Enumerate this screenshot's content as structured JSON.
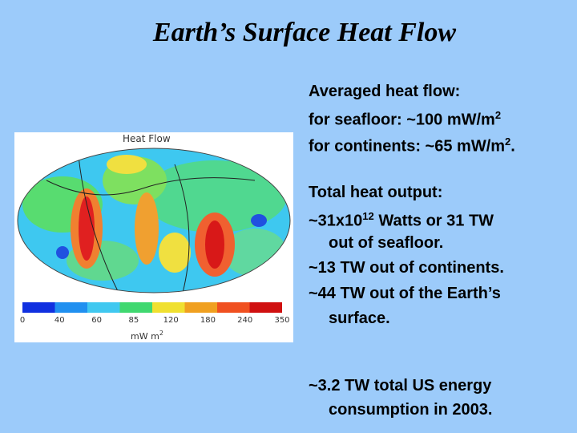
{
  "title": "Earth’s Surface Heat Flow",
  "figure": {
    "title": "Heat Flow",
    "colorbar_labels": [
      "0",
      "40",
      "60",
      "85",
      "120",
      "180",
      "240",
      "350"
    ],
    "unit": "mW m",
    "unit_exponent": "2"
  },
  "blocks": [
    {
      "lines": [
        {
          "text": "Averaged heat flow:"
        },
        {
          "text": "for seafloor: ~100 mW/m",
          "sup": "2"
        },
        {
          "text": "for continents: ~65 mW/m",
          "sup": "2",
          "after": "."
        }
      ]
    },
    {
      "lines": [
        {
          "text": "Total heat output:"
        },
        {
          "text": "~31x10",
          "sup": "12",
          "after": " Watts or 31 TW"
        },
        {
          "text": "out of seafloor.",
          "indent": true
        },
        {
          "text": "~13 TW out of continents."
        },
        {
          "text": "~44 TW out of the Earth’s"
        },
        {
          "text": "surface.",
          "indent": true
        }
      ]
    },
    {
      "lines": [
        {
          "text": "~3.2 TW total US energy"
        },
        {
          "text": "consumption in 2003.",
          "indent": true
        }
      ]
    }
  ]
}
